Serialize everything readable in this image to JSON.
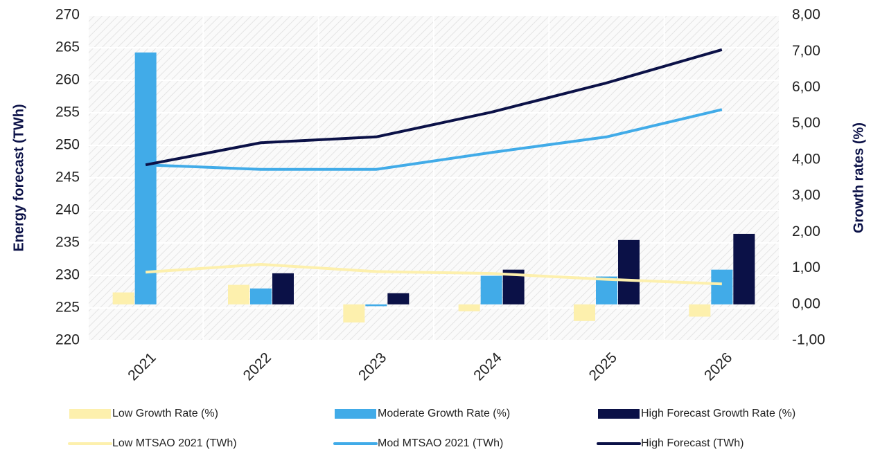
{
  "chart_data": {
    "type": "bar",
    "y_label": "Energy forecast (TWh)",
    "y2_label": "Growth rates (%)",
    "categories": [
      "2021",
      "2022",
      "2023",
      "2024",
      "2025",
      "2026"
    ],
    "ylim": [
      220,
      270
    ],
    "yticks": [
      220,
      225,
      230,
      235,
      240,
      245,
      250,
      255,
      260,
      265,
      270
    ],
    "y2lim": [
      -1,
      8
    ],
    "y2ticks": [
      {
        "value": -1,
        "label": "-1,00"
      },
      {
        "value": 0,
        "label": "0,00"
      },
      {
        "value": 1,
        "label": "1,00"
      },
      {
        "value": 2,
        "label": "2,00"
      },
      {
        "value": 3,
        "label": "3,00"
      },
      {
        "value": 4,
        "label": "4,00"
      },
      {
        "value": 5,
        "label": "5,00"
      },
      {
        "value": 6,
        "label": "6,00"
      },
      {
        "value": 7,
        "label": "7,00"
      },
      {
        "value": 8,
        "label": "8,00"
      }
    ],
    "grid": true,
    "series": [
      {
        "name": "Low Growth Rate (%)",
        "type": "bar",
        "axis": "y2",
        "color": "#fdf0ad",
        "values": [
          0.33,
          0.54,
          -0.5,
          -0.19,
          -0.46,
          -0.34
        ]
      },
      {
        "name": "Moderate Growth Rate (%)",
        "type": "bar",
        "axis": "y2",
        "color": "#41abe8",
        "values": [
          6.97,
          0.44,
          -0.05,
          0.79,
          0.77,
          0.96
        ]
      },
      {
        "name": "High Forecast Growth Rate (%)",
        "type": "bar",
        "axis": "y2",
        "color": "#0b1147",
        "values": [
          null,
          0.86,
          0.31,
          0.96,
          1.78,
          1.95
        ]
      },
      {
        "name": "Low MTSAO 2021 (TWh)",
        "type": "line",
        "color": "#fdf0ad",
        "values": [
          230.5,
          231.7,
          230.6,
          230.3,
          229.4,
          228.7
        ]
      },
      {
        "name": "Mod MTSAO 2021 (TWh)",
        "type": "line",
        "color": "#41abe8",
        "values": [
          247.0,
          246.3,
          246.3,
          248.9,
          251.3,
          255.5
        ]
      },
      {
        "name": "High Forecast (TWh)",
        "type": "line",
        "color": "#0b1147",
        "values": [
          247.0,
          250.4,
          251.3,
          255.1,
          259.6,
          264.7
        ]
      }
    ]
  }
}
